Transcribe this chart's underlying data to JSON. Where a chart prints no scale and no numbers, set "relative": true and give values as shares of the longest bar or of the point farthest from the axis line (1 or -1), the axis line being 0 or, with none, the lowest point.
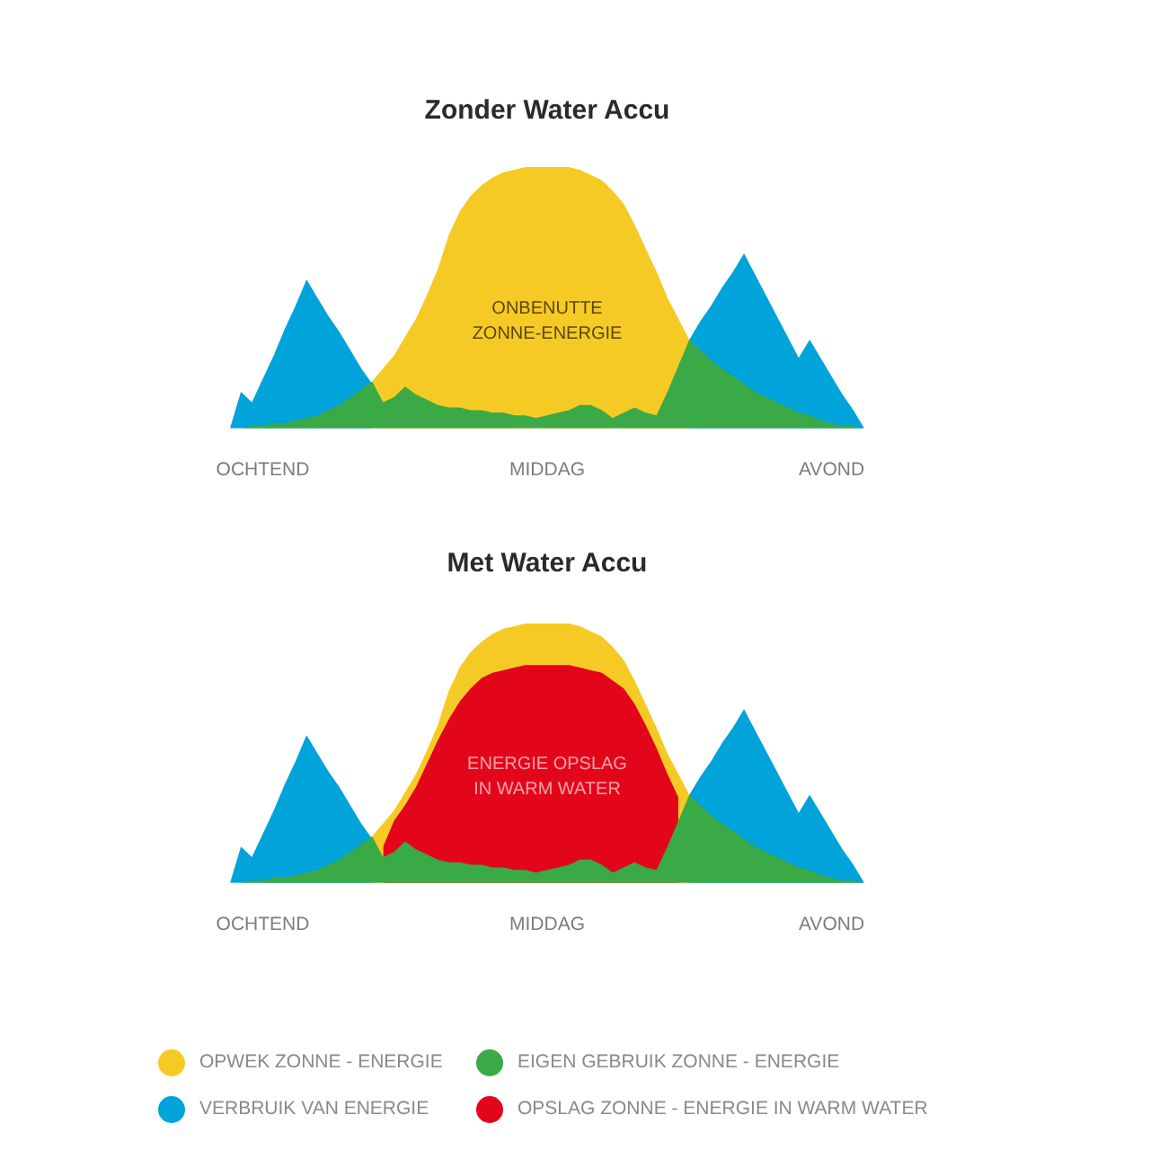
{
  "chart_data": [
    {
      "type": "area",
      "title": "Zonder Water Accu",
      "relative": true,
      "categories": [
        null,
        null,
        null,
        "OCHTEND",
        null,
        null,
        null,
        null,
        null,
        null,
        null,
        null,
        null,
        null,
        null,
        null,
        null,
        null,
        null,
        null,
        null,
        null,
        null,
        null,
        null,
        null,
        null,
        null,
        null,
        "MIDDAG",
        null,
        null,
        null,
        null,
        null,
        null,
        null,
        null,
        null,
        null,
        null,
        null,
        null,
        null,
        null,
        null,
        null,
        null,
        null,
        null,
        null,
        null,
        null,
        null,
        null,
        "AVOND",
        null,
        null,
        null
      ],
      "series": [
        {
          "color": "#f6ca24",
          "values": [
            null,
            null,
            null,
            null,
            null,
            null,
            null,
            null,
            null,
            null,
            null,
            null,
            null,
            0.18,
            0.23,
            0.28,
            0.35,
            0.42,
            0.51,
            0.61,
            0.74,
            0.83,
            0.89,
            0.93,
            0.96,
            0.98,
            0.99,
            1,
            1,
            1,
            1,
            1,
            0.99,
            0.97,
            0.95,
            0.91,
            0.86,
            0.78,
            0.69,
            0.6,
            0.5,
            0.42,
            0.34,
            null,
            null,
            null,
            null,
            null,
            null,
            null,
            null,
            null,
            null,
            null,
            null,
            null,
            null,
            null,
            null
          ]
        },
        {
          "color": "#00a3da",
          "values": [
            0,
            0.14,
            0.1,
            0.19,
            0.28,
            0.38,
            0.47,
            0.57,
            0.5,
            0.43,
            0.37,
            0.3,
            0.23,
            0.17,
            null,
            null,
            null,
            null,
            null,
            null,
            null,
            null,
            null,
            null,
            null,
            null,
            null,
            null,
            null,
            null,
            null,
            null,
            null,
            null,
            null,
            null,
            null,
            null,
            null,
            null,
            null,
            null,
            0.34,
            0.41,
            0.47,
            0.54,
            0.6,
            0.67,
            0.59,
            0.51,
            0.43,
            0.35,
            0.27,
            0.34,
            0.27,
            0.2,
            0.13,
            0.07,
            0
          ]
        },
        {
          "color": "#3aaa47",
          "values": [
            0,
            0,
            0.01,
            0.01,
            0.02,
            0.02,
            0.03,
            0.04,
            0.05,
            0.07,
            0.09,
            0.12,
            0.15,
            0.18,
            0.1,
            0.12,
            0.16,
            0.13,
            0.11,
            0.09,
            0.08,
            0.08,
            0.07,
            0.07,
            0.06,
            0.06,
            0.05,
            0.05,
            0.04,
            0.05,
            0.06,
            0.07,
            0.09,
            0.09,
            0.07,
            0.04,
            0.06,
            0.08,
            0.06,
            0.05,
            0.14,
            0.24,
            0.34,
            0.3,
            0.26,
            0.23,
            0.2,
            0.17,
            0.14,
            0.12,
            0.1,
            0.08,
            0.06,
            0.05,
            0.03,
            0.02,
            0.01,
            0.01,
            0
          ]
        }
      ],
      "annotations": [
        "ONBENUTTE ZONNE-ENERGIE"
      ]
    },
    {
      "type": "area",
      "title": "Met Water Accu",
      "relative": true,
      "categories": [
        null,
        null,
        null,
        "OCHTEND",
        null,
        null,
        null,
        null,
        null,
        null,
        null,
        null,
        null,
        null,
        null,
        null,
        null,
        null,
        null,
        null,
        null,
        null,
        null,
        null,
        null,
        null,
        null,
        null,
        null,
        "MIDDAG",
        null,
        null,
        null,
        null,
        null,
        null,
        null,
        null,
        null,
        null,
        null,
        null,
        null,
        null,
        null,
        null,
        null,
        null,
        null,
        null,
        null,
        null,
        null,
        null,
        null,
        "AVOND",
        null,
        null,
        null
      ],
      "series": [
        {
          "name": "OPWEK ZONNE - ENERGIE",
          "color": "#f6ca24",
          "values": [
            null,
            null,
            null,
            null,
            null,
            null,
            null,
            null,
            null,
            null,
            null,
            null,
            null,
            0.18,
            0.23,
            0.28,
            0.35,
            0.42,
            0.51,
            0.61,
            0.74,
            0.83,
            0.89,
            0.93,
            0.96,
            0.98,
            0.99,
            1,
            1,
            1,
            1,
            1,
            0.99,
            0.97,
            0.95,
            0.91,
            0.86,
            0.78,
            0.69,
            0.6,
            0.5,
            0.42,
            0.34,
            null,
            null,
            null,
            null,
            null,
            null,
            null,
            null,
            null,
            null,
            null,
            null,
            null,
            null,
            null,
            null
          ]
        },
        {
          "name": "VERBRUIK VAN ENERGIE",
          "color": "#00a3da",
          "values": [
            0,
            0.14,
            0.1,
            0.19,
            0.28,
            0.38,
            0.47,
            0.57,
            0.5,
            0.43,
            0.37,
            0.3,
            0.23,
            0.17,
            null,
            null,
            null,
            null,
            null,
            null,
            null,
            null,
            null,
            null,
            null,
            null,
            null,
            null,
            null,
            null,
            null,
            null,
            null,
            null,
            null,
            null,
            null,
            null,
            null,
            null,
            null,
            null,
            0.34,
            0.41,
            0.47,
            0.54,
            0.6,
            0.67,
            0.59,
            0.51,
            0.43,
            0.35,
            0.27,
            0.34,
            0.27,
            0.2,
            0.13,
            0.07,
            0
          ]
        },
        {
          "name": "EIGEN GEBRUIK ZONNE - ENERGIE",
          "color": "#3aaa47",
          "values": [
            0,
            0,
            0.01,
            0.01,
            0.02,
            0.02,
            0.03,
            0.04,
            0.05,
            0.07,
            0.09,
            0.12,
            0.15,
            0.18,
            0.1,
            0.12,
            0.16,
            0.13,
            0.11,
            0.09,
            0.08,
            0.08,
            0.07,
            0.07,
            0.06,
            0.06,
            0.05,
            0.05,
            0.04,
            0.05,
            0.06,
            0.07,
            0.09,
            0.09,
            0.07,
            0.04,
            0.06,
            0.08,
            0.06,
            0.05,
            0.14,
            0.24,
            0.34,
            0.3,
            0.26,
            0.23,
            0.2,
            0.17,
            0.14,
            0.12,
            0.1,
            0.08,
            0.06,
            0.05,
            0.03,
            0.02,
            0.01,
            0.01,
            0
          ]
        },
        {
          "name": "OPSLAG ZONNE - ENERGIE IN WARM WATER",
          "color": "#e3061a",
          "values": [
            null,
            null,
            null,
            null,
            null,
            null,
            null,
            null,
            null,
            null,
            null,
            null,
            null,
            null,
            0.14,
            0.24,
            0.3,
            0.37,
            0.46,
            0.55,
            0.63,
            0.7,
            0.75,
            0.79,
            0.81,
            0.82,
            0.83,
            0.84,
            0.84,
            0.84,
            0.84,
            0.84,
            0.83,
            0.82,
            0.81,
            0.78,
            0.75,
            0.69,
            0.61,
            0.52,
            0.42,
            0.33,
            null,
            null,
            null,
            null,
            null,
            null,
            null,
            null,
            null,
            null,
            null,
            null,
            null,
            null,
            null,
            null,
            null
          ]
        }
      ],
      "legend": "bottom",
      "annotations": [
        "ENERGIE OPSLAG IN WARM WATER"
      ]
    }
  ]
}
